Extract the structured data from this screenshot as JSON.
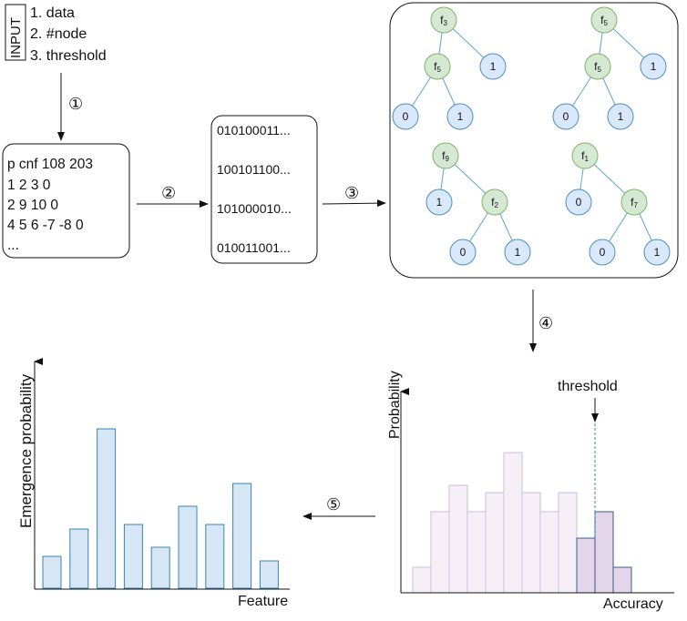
{
  "input": {
    "label": "INPUT",
    "items": [
      "1. data",
      "2. #node",
      "3. threshold"
    ]
  },
  "steps": [
    "①",
    "②",
    "③",
    "④",
    "⑤"
  ],
  "cnf_box": {
    "lines": [
      "p cnf 108 203",
      "1 2 3 0",
      "2 9 10 0",
      "4 5 6 -7 -8 0",
      "..."
    ]
  },
  "binary_box": {
    "lines": [
      "010100011...",
      "100101100...",
      "101000010...",
      "010011001..."
    ]
  },
  "trees": [
    {
      "root": "f3",
      "left": "f5",
      "right": "1",
      "leaves": [
        "0",
        "1"
      ]
    },
    {
      "root": "f5",
      "left": "f5",
      "right": "1",
      "leaves": [
        "0",
        "1"
      ]
    },
    {
      "root": "f9",
      "left": "1",
      "right": "f2",
      "leaves": [
        "0",
        "1"
      ]
    },
    {
      "root": "f1",
      "left": "0",
      "right": "f7",
      "leaves": [
        "0",
        "1"
      ]
    }
  ],
  "accuracy_chart": {
    "ylabel": "Probability",
    "xlabel": "Accuracy",
    "threshold_label": "threshold",
    "colors": {
      "below": "#f6eff8",
      "above": "#e4d6ea",
      "edge": "#c9bfd9",
      "edge_dark": "#3b5b8a"
    },
    "chart_data": {
      "type": "bar",
      "values": [
        28,
        89,
        118,
        89,
        110,
        154,
        110,
        89,
        110,
        60,
        89,
        28
      ],
      "threshold_index": 9
    }
  },
  "feature_chart": {
    "ylabel": "Emergence probability",
    "xlabel": "Feature",
    "colors": {
      "fill": "#d6e6f5",
      "edge": "#3a84b0"
    },
    "chart_data": {
      "type": "bar",
      "values": [
        35,
        65,
        175,
        70,
        45,
        90,
        70,
        115,
        30
      ]
    }
  }
}
